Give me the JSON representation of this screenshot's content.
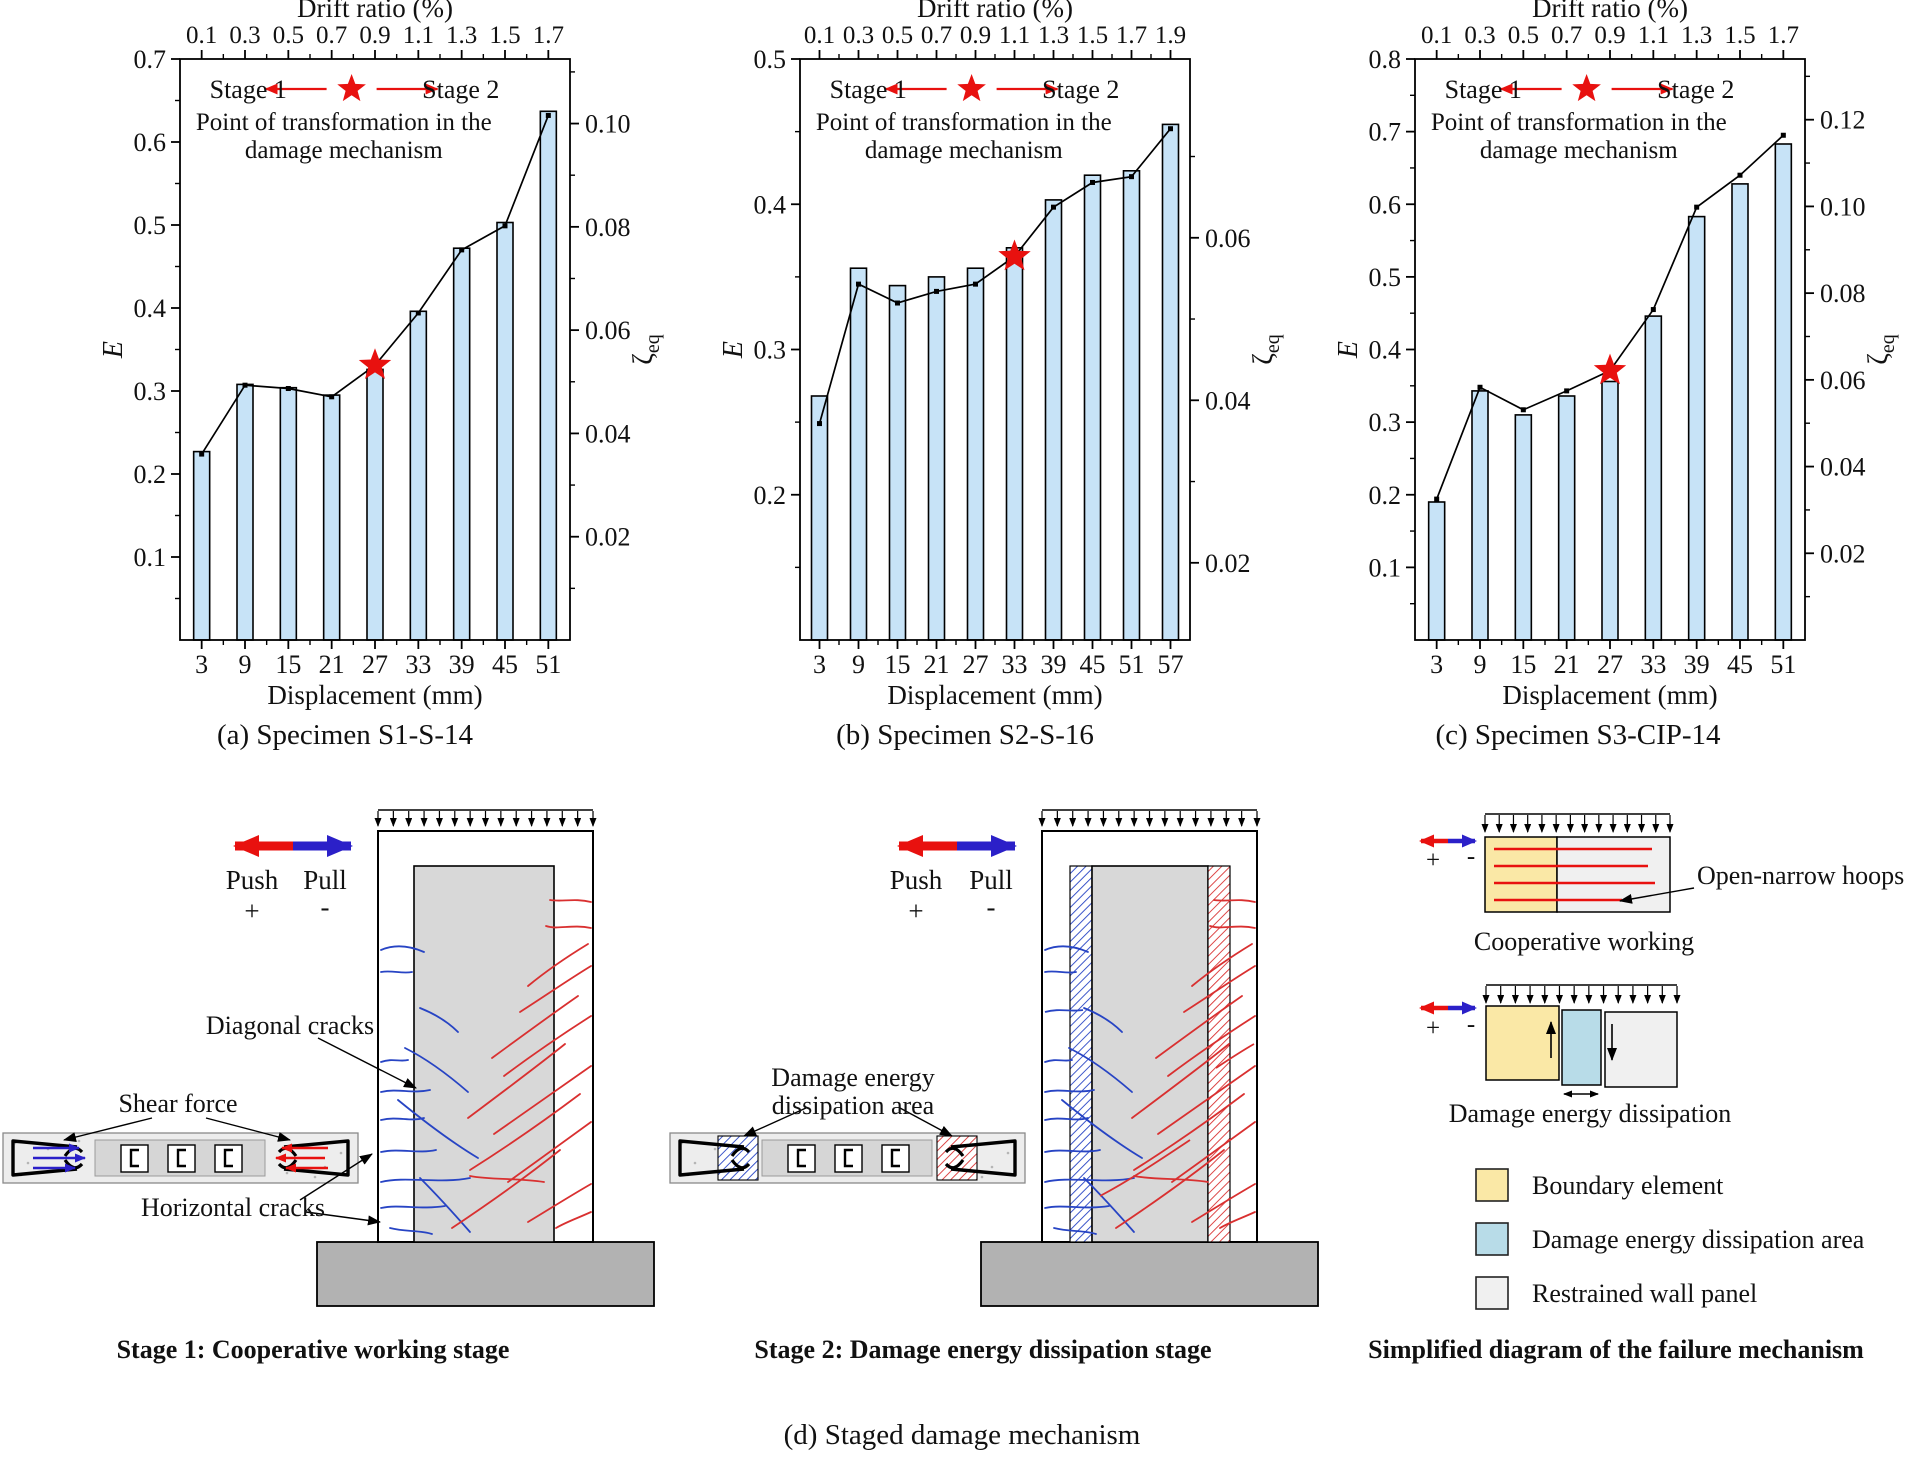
{
  "colors": {
    "bar_fill": "#c7e3f7",
    "bar_edge": "#000000",
    "line_black": "#000000",
    "star_red": "#e8110f",
    "push_red": "#e8110f",
    "pull_blue": "#2b20c8",
    "crack_blue": "#2744c4",
    "crack_red": "#d93030",
    "wall_panel": "#d8d8d8",
    "base_gray": "#b2b2b2",
    "section_bg": "#ededed",
    "section_band": "#d6d6d6",
    "legend_yellow": "#fae8a6",
    "legend_blue": "#b8dce8",
    "legend_gray": "#f0f0f0",
    "hoop_red": "#e8110f"
  },
  "chart_data": [
    {
      "type": "bar",
      "id": "a",
      "caption": "(a) Specimen S1-S-14",
      "top_axis_label": "Drift ratio (%)",
      "drift_ticks": [
        "0.1",
        "0.3",
        "0.5",
        "0.7",
        "0.9",
        "1.1",
        "1.3",
        "1.5",
        "1.7"
      ],
      "x_label": "Displacement (mm)",
      "x_ticks": [
        "3",
        "9",
        "15",
        "21",
        "27",
        "33",
        "39",
        "45",
        "51"
      ],
      "left_label": "E",
      "left_ticks": [
        "0.1",
        "0.2",
        "0.3",
        "0.4",
        "0.5",
        "0.6",
        "0.7"
      ],
      "left_min": 0,
      "left_max": 0.7,
      "right_label": "ζ",
      "right_label_sub": "eq",
      "right_ticks": [
        "0.02",
        "0.04",
        "0.06",
        "0.08",
        "0.10"
      ],
      "right_min": 0,
      "right_max": 0.1125,
      "bars": [
        0.227,
        0.308,
        0.304,
        0.295,
        0.326,
        0.396,
        0.472,
        0.503,
        0.637
      ],
      "line_overlay": [
        0.224,
        0.307,
        0.303,
        0.293,
        0.331,
        0.394,
        0.47,
        0.499,
        0.632
      ],
      "star_index": 4,
      "header": {
        "stage1": "Stage 1",
        "stage2": "Stage 2",
        "note1": "Point of transformation in the",
        "note2": "damage mechanism"
      }
    },
    {
      "type": "bar",
      "id": "b",
      "caption": "(b) Specimen S2-S-16",
      "top_axis_label": "Drift ratio (%)",
      "drift_ticks": [
        "0.1",
        "0.3",
        "0.5",
        "0.7",
        "0.9",
        "1.1",
        "1.3",
        "1.5",
        "1.7",
        "1.9"
      ],
      "x_label": "Displacement (mm)",
      "x_ticks": [
        "3",
        "9",
        "15",
        "21",
        "27",
        "33",
        "39",
        "45",
        "51",
        "57"
      ],
      "left_label": "E",
      "left_ticks": [
        "0.2",
        "0.3",
        "0.4",
        "0.5"
      ],
      "left_min": 0.1,
      "left_max": 0.5,
      "right_label": "ζ",
      "right_label_sub": "eq",
      "right_ticks": [
        "0.02",
        "0.04",
        "0.06"
      ],
      "right_min": 0.0105,
      "right_max": 0.082,
      "bars": [
        0.268,
        0.356,
        0.344,
        0.35,
        0.356,
        0.37,
        0.403,
        0.42,
        0.423,
        0.455
      ],
      "line_overlay": [
        0.249,
        0.345,
        0.332,
        0.34,
        0.345,
        0.364,
        0.398,
        0.415,
        0.419,
        0.452
      ],
      "star_index": 5,
      "header": {
        "stage1": "Stage 1",
        "stage2": "Stage 2",
        "note1": "Point of transformation in the",
        "note2": "damage mechanism"
      }
    },
    {
      "type": "bar",
      "id": "c",
      "caption": "(c) Specimen S3-CIP-14",
      "top_axis_label": "Drift ratio (%)",
      "drift_ticks": [
        "0.1",
        "0.3",
        "0.5",
        "0.7",
        "0.9",
        "1.1",
        "1.3",
        "1.5",
        "1.7"
      ],
      "x_label": "Displacement (mm)",
      "x_ticks": [
        "3",
        "9",
        "15",
        "21",
        "27",
        "33",
        "39",
        "45",
        "51"
      ],
      "left_label": "E",
      "left_ticks": [
        "0.1",
        "0.2",
        "0.3",
        "0.4",
        "0.5",
        "0.6",
        "0.7",
        "0.8"
      ],
      "left_min": 0,
      "left_max": 0.8,
      "right_label": "ζ",
      "right_label_sub": "eq",
      "right_ticks": [
        "0.02",
        "0.04",
        "0.06",
        "0.08",
        "0.10",
        "0.12"
      ],
      "right_min": 0,
      "right_max": 0.134,
      "bars": [
        0.19,
        0.343,
        0.31,
        0.336,
        0.356,
        0.446,
        0.583,
        0.628,
        0.683
      ],
      "line_overlay": [
        0.194,
        0.348,
        0.317,
        0.343,
        0.371,
        0.455,
        0.596,
        0.64,
        0.695
      ],
      "star_index": 4,
      "header": {
        "stage1": "Stage 1",
        "stage2": "Stage 2",
        "note1": "Point of transformation in the",
        "note2": "damage mechanism"
      }
    }
  ],
  "stage1": {
    "push": "Push",
    "plus": "+",
    "pull": "Pull",
    "minus": "-",
    "diagonal_label": "Diagonal cracks",
    "shear_label": "Shear force",
    "horizontal_label": "Horizontal cracks",
    "caption": "Stage 1: Cooperative working stage"
  },
  "stage2": {
    "push": "Push",
    "plus": "+",
    "pull": "Pull",
    "minus": "-",
    "area_line1": "Damage energy",
    "area_line2": "dissipation area",
    "caption": "Stage 2: Damage energy dissipation stage"
  },
  "simplified": {
    "plus": "+",
    "minus": "-",
    "hoops_label": "Open-narrow hoops",
    "coop_caption": "Cooperative working",
    "dissip_caption": "Damage energy dissipation",
    "legend": [
      {
        "label": "Boundary element"
      },
      {
        "label": "Damage energy dissipation area"
      },
      {
        "label": "Restrained wall panel"
      }
    ],
    "caption": "Simplified diagram of the failure mechanism"
  },
  "figure_caption_d": "(d) Staged damage mechanism"
}
